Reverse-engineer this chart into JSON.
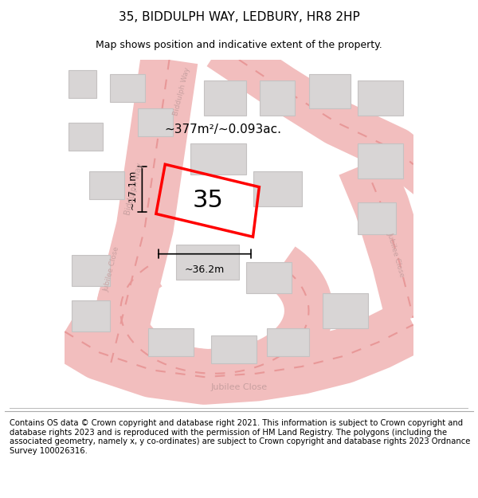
{
  "title": "35, BIDDULPH WAY, LEDBURY, HR8 2HP",
  "subtitle": "Map shows position and indicative extent of the property.",
  "footer": "Contains OS data © Crown copyright and database right 2021. This information is subject to Crown copyright and database rights 2023 and is reproduced with the permission of HM Land Registry. The polygons (including the associated geometry, namely x, y co-ordinates) are subject to Crown copyright and database rights 2023 Ordnance Survey 100026316.",
  "area_label": "~377m²/~0.093ac.",
  "width_label": "~36.2m",
  "height_label": "~17.1m",
  "number_label": "35",
  "map_bg": "#f0eeee",
  "road_color": "#f2bebe",
  "road_center_color": "#e89898",
  "building_color": "#d8d5d5",
  "building_edge": "#c5c2c2",
  "plot_color": "#ff0000",
  "plot_linewidth": 2.5,
  "text_color_map": "#c8a0a0",
  "figsize": [
    6.0,
    6.25
  ],
  "dpi": 100,
  "title_fontsize": 11,
  "subtitle_fontsize": 9,
  "footer_fontsize": 7.2
}
